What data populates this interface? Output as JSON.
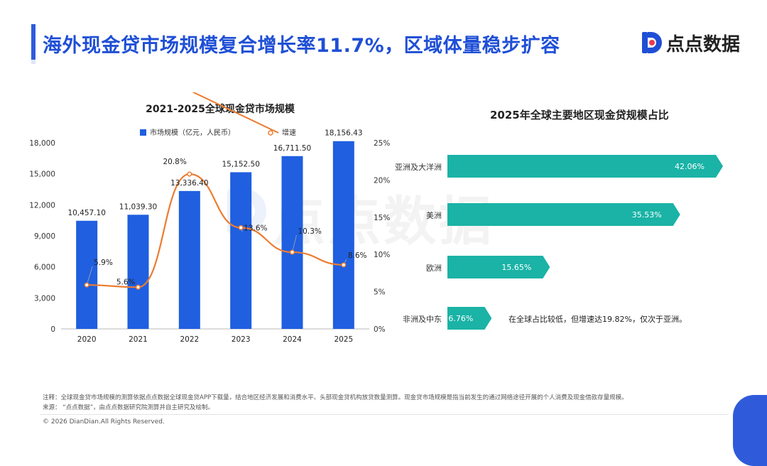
{
  "header": {
    "title": "海外现金贷市场规模复合增长率11.7%，区域体量稳步扩容",
    "logo_text": "点点数据"
  },
  "watermark_text": "点点数据",
  "colors": {
    "brand_blue": "#1f4fd6",
    "bar_blue": "#1f5fe0",
    "line_orange": "#ec7c30",
    "teal": "#1ab3a6"
  },
  "chart_data": [
    {
      "type": "bar",
      "title": "2021-2025全球现金贷市场规模",
      "categories": [
        "2020",
        "2021",
        "2022",
        "2023",
        "2024",
        "2025"
      ],
      "series": [
        {
          "name": "市场规模（亿元，人民币）",
          "kind": "bar",
          "axis": "left",
          "values": [
            10457.1,
            11039.3,
            13336.4,
            15152.5,
            16711.5,
            18156.43
          ],
          "labels": [
            "10,457.10",
            "11,039.30",
            "13,336.40",
            "15,152.50",
            "16,711.50",
            "18,156.43"
          ]
        },
        {
          "name": "增速",
          "kind": "line",
          "axis": "right",
          "values": [
            5.9,
            5.6,
            20.8,
            13.6,
            10.3,
            8.6
          ],
          "labels": [
            "5.9%",
            "5.6%",
            "20.8%",
            "13.6%",
            "10.3%",
            "8.6%"
          ]
        }
      ],
      "ylim": [
        0,
        18000
      ],
      "y_ticks": [
        "0",
        "3,000",
        "6,000",
        "9,000",
        "12,000",
        "15,000",
        "18,000"
      ],
      "y2lim": [
        0,
        25
      ],
      "y2_ticks": [
        "0%",
        "5%",
        "10%",
        "15%",
        "20%",
        "25%"
      ],
      "legend": "top"
    },
    {
      "type": "bar",
      "orientation": "horizontal",
      "title": "2025年全球主要地区现金贷规模占比",
      "categories": [
        "亚洲及大洋洲",
        "美洲",
        "欧洲",
        "非洲及中东"
      ],
      "values": [
        42.06,
        35.53,
        15.65,
        6.76
      ],
      "labels": [
        "42.06%",
        "35.53%",
        "15.65%",
        "6.76%"
      ],
      "annotation": "在全球占比较低，但增速达19.82%，仅次于亚洲。"
    }
  ],
  "footer": {
    "note": "注释：全球现金贷市场规模的测算依据点点数据全球现金贷APP下载量，结合地区经济发展和消费水平、头部现金贷机构放贷数量测算。现金贷市场规模是指当前发生的通过网络途径开展的个人消费及现金借款存量规模。",
    "source": "来源：  “点点数据”，由点点数据研究院测算并自主研究及绘制。",
    "copyright": "© 2026 DianDian.All Rights Reserved."
  }
}
